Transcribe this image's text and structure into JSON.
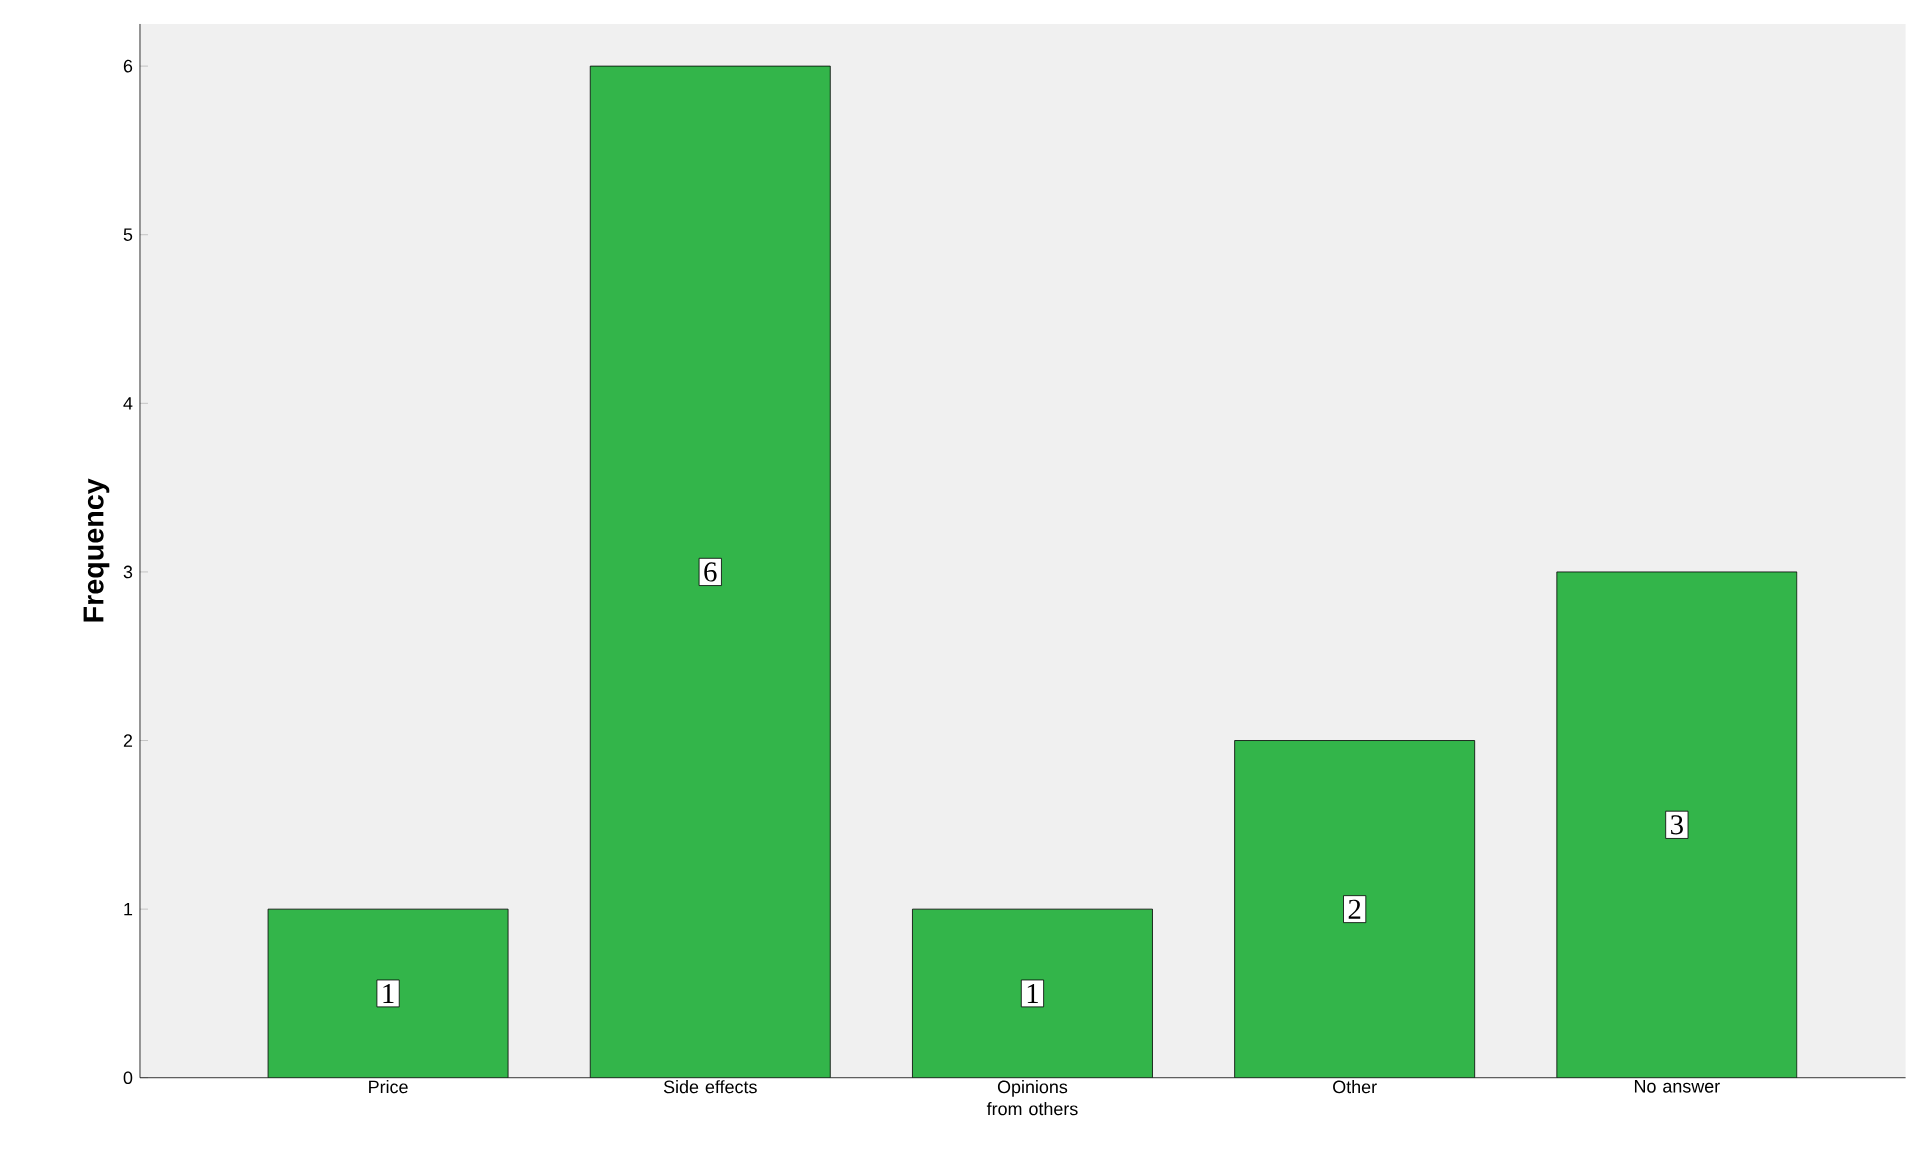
{
  "chart_data": {
    "type": "bar",
    "ylabel": "Frequency",
    "categories": [
      "Price",
      "Side effects",
      "Opinions from others",
      "Other",
      "No answer"
    ],
    "values": [
      1,
      6,
      1,
      2,
      3
    ],
    "color": "#33b54a",
    "ylim": [
      0,
      6.25
    ],
    "yticks": [
      0,
      1,
      2,
      3,
      4,
      5,
      6
    ],
    "data_labels": true
  }
}
